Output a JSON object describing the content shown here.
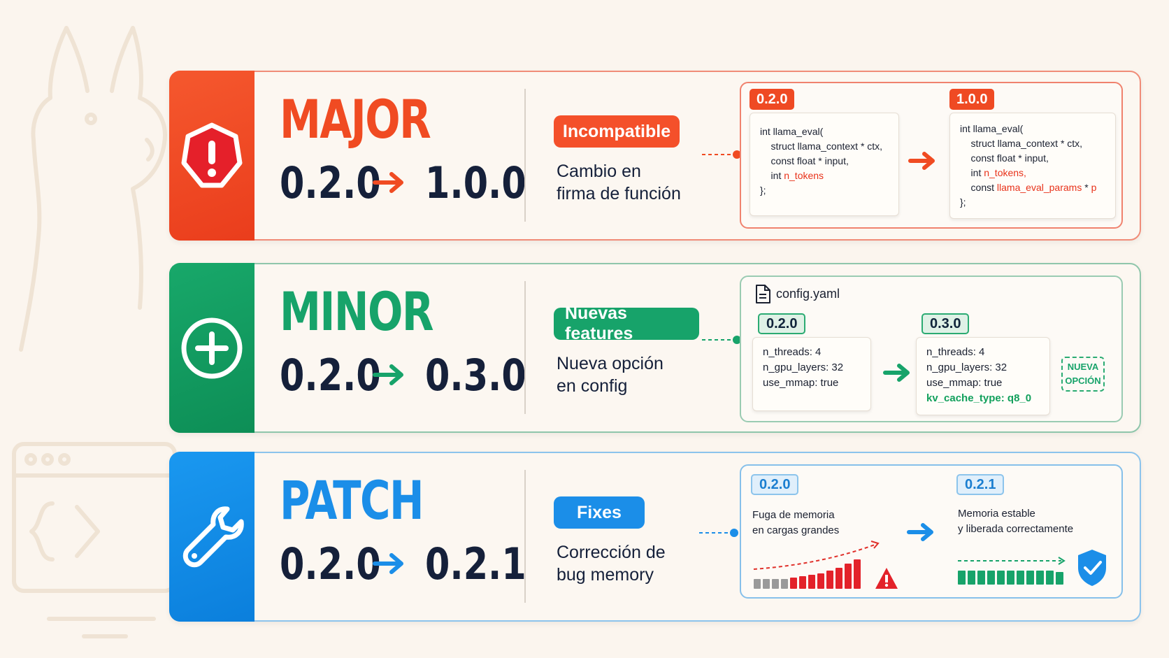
{
  "major": {
    "title": "MAJOR",
    "from": "0.2.0",
    "to": "1.0.0",
    "badge": "Incompatible",
    "desc_line1": "Cambio en",
    "desc_line2": "firma de función",
    "left_tag": "0.2.0",
    "right_tag": "1.0.0",
    "left_code": [
      "int llama_eval(",
      "    struct llama_context * ctx,",
      "    const float * input,",
      "    int ",
      "};"
    ],
    "left_code_red": "n_tokens",
    "right_code": [
      "int llama_eval(",
      "    struct llama_context * ctx,",
      "    const float * input,",
      "    int ",
      "    const ",
      "};"
    ],
    "right_code_red1": "n_tokens,",
    "right_code_red2": "llama_eval_params",
    "right_code_tail": " * ",
    "right_code_red3": "p",
    "color": "#f04b22"
  },
  "minor": {
    "title": "MINOR",
    "from": "0.2.0",
    "to": "0.3.0",
    "badge": "Nuevas features",
    "desc_line1": "Nueva opción",
    "desc_line2": "en config",
    "file_name": "config.yaml",
    "left_tag": "0.2.0",
    "right_tag": "0.3.0",
    "left_lines": [
      "n_threads: 4",
      "n_gpu_layers: 32",
      "use_mmap: true"
    ],
    "right_lines": [
      "n_threads: 4",
      "n_gpu_layers: 32",
      "use_mmap: true"
    ],
    "right_new_line": "kv_cache_type: q8_0",
    "new_label_1": "NUEVA",
    "new_label_2": "OPCIÓN",
    "color": "#17a36a"
  },
  "patch": {
    "title": "PATCH",
    "from": "0.2.0",
    "to": "0.2.1",
    "badge": "Fixes",
    "desc_line1": "Corrección de",
    "desc_line2": "bug memory",
    "left_tag": "0.2.0",
    "right_tag": "0.2.1",
    "left_text_1": "Fuga de memoria",
    "left_text_2": "en cargas grandes",
    "right_text_1": "Memoria estable",
    "right_text_2": "y liberada correctamente",
    "color": "#1b8ee8"
  }
}
